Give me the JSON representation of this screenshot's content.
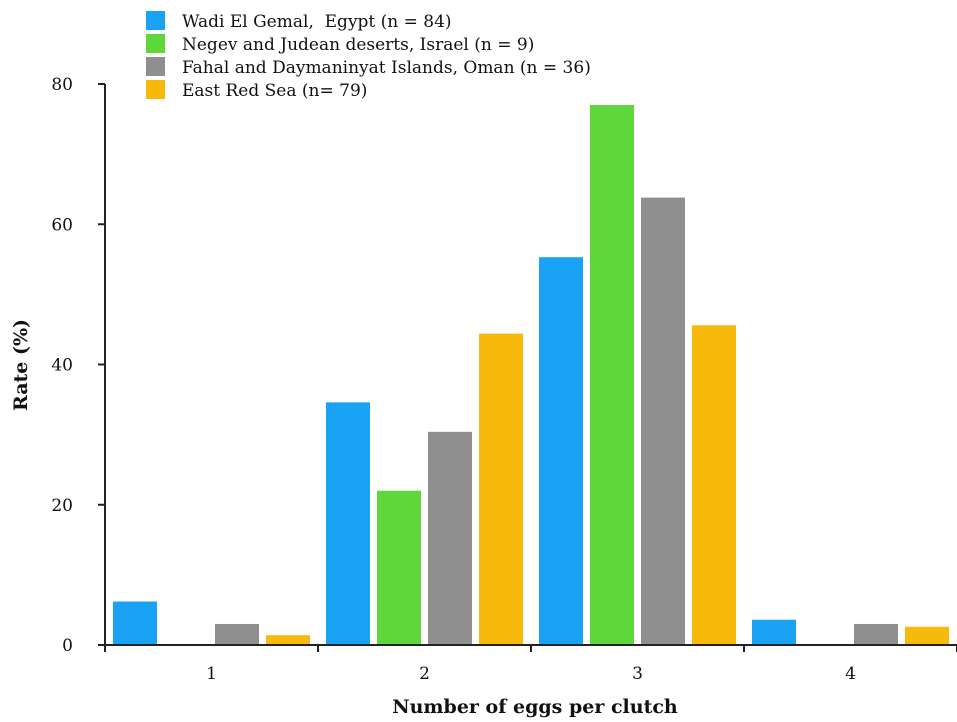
{
  "chart_data": {
    "type": "bar",
    "title": "",
    "xlabel": "Number of eggs per clutch",
    "ylabel": "Rate (%)",
    "categories": [
      "1",
      "2",
      "3",
      "4"
    ],
    "ylim": [
      0,
      80
    ],
    "yticks": [
      "0",
      "20",
      "40",
      "60",
      "80"
    ],
    "grid": false,
    "legend_position": "top-left",
    "series": [
      {
        "name": "Wadi El Gemal,  Egypt (n = 84)",
        "color": "#1aa3f5",
        "values": [
          6.2,
          34.6,
          55.3,
          3.6
        ]
      },
      {
        "name": "Negev and Judean deserts, Israel (n = 9)",
        "color": "#5fd63a",
        "values": [
          0,
          22.0,
          77.0,
          0
        ]
      },
      {
        "name": "Fahal and Daymaninyat Islands, Oman (n = 36)",
        "color": "#8f8f8f",
        "values": [
          3.0,
          30.4,
          63.8,
          3.0
        ]
      },
      {
        "name": "East Red Sea (n= 79)",
        "color": "#f6b90c",
        "values": [
          1.4,
          44.4,
          45.6,
          2.6
        ]
      }
    ]
  }
}
